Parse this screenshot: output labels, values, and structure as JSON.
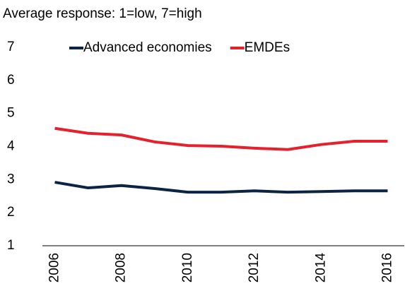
{
  "chart_data": {
    "type": "line",
    "title": "Average response: 1=low, 7=high",
    "categories": [
      "2006",
      null,
      "2008",
      null,
      "2010",
      null,
      "2012",
      null,
      "2014",
      null,
      "2016"
    ],
    "series": [
      {
        "name": "Advanced economies",
        "color": "#0b2345",
        "values": [
          2.92,
          2.75,
          2.82,
          2.73,
          2.62,
          2.62,
          2.66,
          2.62,
          2.64,
          2.66,
          2.66
        ]
      },
      {
        "name": "EMDEs",
        "color": "#e4222e",
        "values": [
          4.55,
          4.4,
          4.35,
          4.14,
          4.03,
          4.01,
          3.95,
          3.91,
          4.06,
          4.16,
          4.16
        ]
      }
    ],
    "ylim": [
      1,
      7
    ],
    "yticks": [
      1,
      2,
      3,
      4,
      5,
      6,
      7
    ],
    "grid": false,
    "legend": "top"
  }
}
